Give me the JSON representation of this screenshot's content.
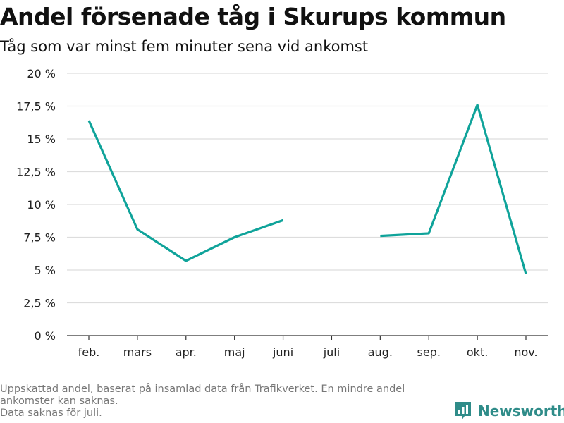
{
  "title": "Andel försenade tåg i Skurups kommun",
  "subtitle": "Tåg som var minst fem minuter sena vid ankomst",
  "footnote": {
    "line1": "Uppskattad andel, baserat på insamlad data från Trafikverket. En mindre andel ankomster kan saknas.",
    "line2": "Data saknas för juli."
  },
  "brand": {
    "name": "Newsworthy",
    "icon": "bar-chart-logo-icon",
    "color": "#2f8c89"
  },
  "chart_data": {
    "type": "line",
    "categories": [
      "feb.",
      "mars",
      "apr.",
      "maj",
      "juni",
      "juli",
      "aug.",
      "sep.",
      "okt.",
      "nov."
    ],
    "series": [
      {
        "color": "#0fa39a",
        "values": [
          16.4,
          8.1,
          5.7,
          7.5,
          8.8,
          null,
          7.6,
          7.8,
          17.6,
          4.7
        ]
      }
    ],
    "yticks": [
      "0 %",
      "2,5 %",
      "5 %",
      "7,5 %",
      "10 %",
      "12,5 %",
      "15 %",
      "17,5 %",
      "20 %"
    ],
    "ylim": [
      0,
      20
    ],
    "grid": true
  }
}
